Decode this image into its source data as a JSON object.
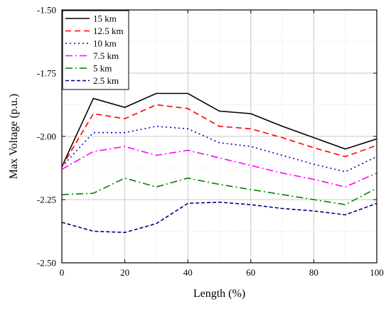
{
  "chart_data": {
    "type": "line",
    "xlabel": "Length (%)",
    "ylabel": "Max Voltage (p.u.)",
    "xlim": [
      0,
      100
    ],
    "ylim": [
      -2.5,
      -1.5
    ],
    "xticks": [
      0,
      20,
      40,
      60,
      80,
      100
    ],
    "xtick_labels": [
      "0",
      "20",
      "40",
      "60",
      "80",
      "100"
    ],
    "yticks": [
      -1.5,
      -1.75,
      -2.0,
      -2.25,
      -2.5
    ],
    "ytick_labels": [
      "-1.50",
      "-1.75",
      "-2.00",
      "-2.25",
      "-2.50"
    ],
    "grid": true,
    "legend_position": "top-left",
    "x": [
      0,
      10,
      20,
      30,
      40,
      50,
      60,
      70,
      80,
      90,
      100
    ],
    "series": [
      {
        "name": "15 km",
        "color": "#000000",
        "dash": "solid",
        "values": [
          -2.12,
          -1.85,
          -1.885,
          -1.83,
          -1.83,
          -1.9,
          -1.91,
          -1.96,
          -2.005,
          -2.05,
          -2.01
        ]
      },
      {
        "name": "12.5 km",
        "color": "#ff0000",
        "dash": "dash",
        "values": [
          -2.12,
          -1.91,
          -1.93,
          -1.875,
          -1.89,
          -1.96,
          -1.97,
          -2.005,
          -2.045,
          -2.08,
          -2.035
        ]
      },
      {
        "name": "10 km",
        "color": "#0000cc",
        "dash": "dot",
        "values": [
          -2.12,
          -1.985,
          -1.985,
          -1.96,
          -1.97,
          -2.025,
          -2.04,
          -2.075,
          -2.11,
          -2.14,
          -2.08
        ]
      },
      {
        "name": "7.5 km",
        "color": "#ff00ff",
        "dash": "dashdot",
        "values": [
          -2.13,
          -2.06,
          -2.04,
          -2.075,
          -2.055,
          -2.085,
          -2.115,
          -2.145,
          -2.17,
          -2.2,
          -2.145
        ]
      },
      {
        "name": "5 km",
        "color": "#008000",
        "dash": "dashdot",
        "values": [
          -2.23,
          -2.225,
          -2.165,
          -2.2,
          -2.165,
          -2.19,
          -2.21,
          -2.23,
          -2.25,
          -2.27,
          -2.205
        ]
      },
      {
        "name": "2.5 km",
        "color": "#000080",
        "dash": "shortdash",
        "values": [
          -2.34,
          -2.375,
          -2.38,
          -2.345,
          -2.265,
          -2.26,
          -2.27,
          -2.285,
          -2.295,
          -2.31,
          -2.265
        ]
      }
    ]
  }
}
